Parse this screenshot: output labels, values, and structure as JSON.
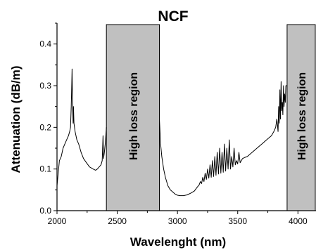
{
  "chart_data": {
    "type": "line",
    "title": "NCF",
    "xlabel": "Wavelenght (nm)",
    "ylabel": "Attenuation (dB/m)",
    "xlim": [
      2000,
      4150
    ],
    "ylim": [
      0,
      0.45
    ],
    "xticks": [
      2000,
      2500,
      3000,
      3500,
      4000
    ],
    "xtick_labels": [
      "2000",
      "2500",
      "3000",
      "3500",
      "4000"
    ],
    "yticks": [
      0.0,
      0.1,
      0.2,
      0.3,
      0.4
    ],
    "ytick_labels": [
      "0.0",
      "0.1",
      "0.2",
      "0.3",
      "0.4"
    ],
    "grid": false,
    "line_color": "#000000",
    "region_color": "#c0c0c0",
    "regions": [
      {
        "label": "High loss region",
        "x_start": 2410,
        "x_end": 2850
      },
      {
        "label": "High loss region",
        "x_start": 3910,
        "x_end": 4150
      }
    ],
    "series": [
      {
        "segments": [
          [
            [
              2000,
              0.06
            ],
            [
              2010,
              0.09
            ],
            [
              2020,
              0.12
            ],
            [
              2035,
              0.13
            ],
            [
              2050,
              0.15
            ],
            [
              2065,
              0.16
            ],
            [
              2080,
              0.17
            ],
            [
              2095,
              0.18
            ],
            [
              2105,
              0.19
            ],
            [
              2112,
              0.2
            ],
            [
              2118,
              0.25
            ],
            [
              2122,
              0.3
            ],
            [
              2125,
              0.34
            ],
            [
              2128,
              0.27
            ],
            [
              2131,
              0.24
            ],
            [
              2134,
              0.21
            ],
            [
              2137,
              0.25
            ],
            [
              2141,
              0.21
            ],
            [
              2150,
              0.19
            ],
            [
              2165,
              0.17
            ],
            [
              2180,
              0.16
            ],
            [
              2200,
              0.14
            ],
            [
              2220,
              0.125
            ],
            [
              2245,
              0.115
            ],
            [
              2270,
              0.105
            ],
            [
              2300,
              0.1
            ],
            [
              2320,
              0.097
            ],
            [
              2335,
              0.1
            ],
            [
              2350,
              0.105
            ],
            [
              2365,
              0.11
            ],
            [
              2375,
              0.12
            ],
            [
              2382,
              0.18
            ],
            [
              2386,
              0.125
            ],
            [
              2393,
              0.14
            ],
            [
              2400,
              0.16
            ],
            [
              2410,
              0.2
            ]
          ],
          [
            [
              2850,
              0.22
            ],
            [
              2860,
              0.16
            ],
            [
              2870,
              0.13
            ],
            [
              2885,
              0.1
            ],
            [
              2900,
              0.08
            ],
            [
              2920,
              0.06
            ],
            [
              2940,
              0.05
            ],
            [
              2960,
              0.045
            ],
            [
              2980,
              0.04
            ],
            [
              3000,
              0.037
            ],
            [
              3020,
              0.036
            ],
            [
              3050,
              0.036
            ],
            [
              3080,
              0.038
            ],
            [
              3110,
              0.042
            ],
            [
              3140,
              0.047
            ],
            [
              3160,
              0.055
            ],
            [
              3180,
              0.062
            ],
            [
              3190,
              0.07
            ],
            [
              3200,
              0.065
            ],
            [
              3210,
              0.08
            ],
            [
              3220,
              0.07
            ],
            [
              3230,
              0.09
            ],
            [
              3240,
              0.075
            ],
            [
              3250,
              0.1
            ],
            [
              3260,
              0.078
            ],
            [
              3270,
              0.11
            ],
            [
              3280,
              0.08
            ],
            [
              3290,
              0.12
            ],
            [
              3300,
              0.082
            ],
            [
              3310,
              0.13
            ],
            [
              3320,
              0.085
            ],
            [
              3330,
              0.14
            ],
            [
              3340,
              0.088
            ],
            [
              3350,
              0.15
            ],
            [
              3360,
              0.09
            ],
            [
              3370,
              0.14
            ],
            [
              3380,
              0.092
            ],
            [
              3390,
              0.16
            ],
            [
              3400,
              0.095
            ],
            [
              3410,
              0.15
            ],
            [
              3420,
              0.1
            ],
            [
              3430,
              0.17
            ],
            [
              3440,
              0.1
            ],
            [
              3450,
              0.13
            ],
            [
              3460,
              0.105
            ],
            [
              3470,
              0.15
            ],
            [
              3480,
              0.11
            ],
            [
              3490,
              0.12
            ],
            [
              3500,
              0.112
            ],
            [
              3510,
              0.14
            ],
            [
              3520,
              0.115
            ],
            [
              3540,
              0.125
            ],
            [
              3560,
              0.128
            ],
            [
              3580,
              0.13
            ],
            [
              3600,
              0.135
            ],
            [
              3620,
              0.14
            ],
            [
              3640,
              0.145
            ],
            [
              3660,
              0.15
            ],
            [
              3680,
              0.155
            ],
            [
              3700,
              0.16
            ],
            [
              3720,
              0.165
            ],
            [
              3740,
              0.17
            ],
            [
              3760,
              0.175
            ],
            [
              3780,
              0.18
            ],
            [
              3800,
              0.19
            ],
            [
              3815,
              0.2
            ],
            [
              3825,
              0.22
            ],
            [
              3835,
              0.19
            ],
            [
              3840,
              0.25
            ],
            [
              3845,
              0.21
            ],
            [
              3850,
              0.29
            ],
            [
              3855,
              0.22
            ],
            [
              3860,
              0.31
            ],
            [
              3865,
              0.24
            ],
            [
              3870,
              0.26
            ],
            [
              3875,
              0.23
            ],
            [
              3880,
              0.3
            ],
            [
              3885,
              0.25
            ],
            [
              3890,
              0.28
            ],
            [
              3895,
              0.26
            ],
            [
              3900,
              0.3
            ],
            [
              3910,
              0.3
            ]
          ]
        ]
      }
    ]
  }
}
